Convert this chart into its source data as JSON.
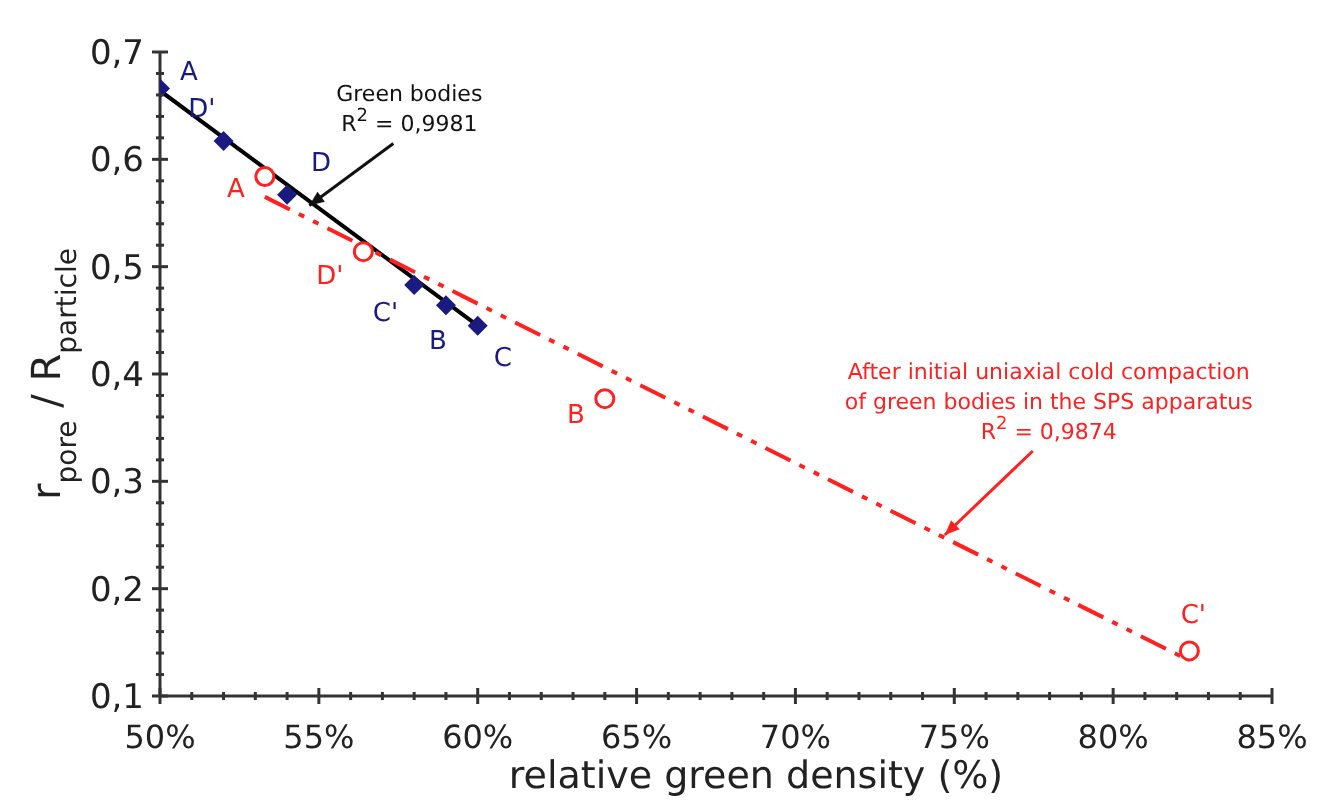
{
  "chart_data": {
    "type": "scatter",
    "xlabel": "relative green density (%)",
    "ylabel": "r$_{pore}$ / R$_{particle}$",
    "xlim": [
      50,
      85
    ],
    "ylim": [
      0.1,
      0.7
    ],
    "xticks": [
      {
        "value": 50,
        "label": "50%"
      },
      {
        "value": 51,
        "label": null
      },
      {
        "value": 52,
        "label": null
      },
      {
        "value": 53,
        "label": null
      },
      {
        "value": 54,
        "label": null
      },
      {
        "value": 55,
        "label": "55%"
      },
      {
        "value": 56,
        "label": null
      },
      {
        "value": 57,
        "label": null
      },
      {
        "value": 58,
        "label": null
      },
      {
        "value": 59,
        "label": null
      },
      {
        "value": 60,
        "label": "60%"
      },
      {
        "value": 61,
        "label": null
      },
      {
        "value": 62,
        "label": null
      },
      {
        "value": 63,
        "label": null
      },
      {
        "value": 64,
        "label": null
      },
      {
        "value": 65,
        "label": "65%"
      },
      {
        "value": 66,
        "label": null
      },
      {
        "value": 67,
        "label": null
      },
      {
        "value": 68,
        "label": null
      },
      {
        "value": 69,
        "label": null
      },
      {
        "value": 70,
        "label": "70%"
      },
      {
        "value": 71,
        "label": null
      },
      {
        "value": 72,
        "label": null
      },
      {
        "value": 73,
        "label": null
      },
      {
        "value": 74,
        "label": null
      },
      {
        "value": 75,
        "label": "75%"
      },
      {
        "value": 76,
        "label": null
      },
      {
        "value": 77,
        "label": null
      },
      {
        "value": 78,
        "label": null
      },
      {
        "value": 79,
        "label": null
      },
      {
        "value": 80,
        "label": "80%"
      },
      {
        "value": 81,
        "label": null
      },
      {
        "value": 82,
        "label": null
      },
      {
        "value": 83,
        "label": null
      },
      {
        "value": 84,
        "label": null
      },
      {
        "value": 85,
        "label": "85%"
      }
    ],
    "yticks": [
      {
        "value": 0.1,
        "label": "0,1"
      },
      {
        "value": 0.12,
        "label": null
      },
      {
        "value": 0.14,
        "label": null
      },
      {
        "value": 0.16,
        "label": null
      },
      {
        "value": 0.18,
        "label": null
      },
      {
        "value": 0.2,
        "label": "0,2"
      },
      {
        "value": 0.22,
        "label": null
      },
      {
        "value": 0.24,
        "label": null
      },
      {
        "value": 0.26,
        "label": null
      },
      {
        "value": 0.28,
        "label": null
      },
      {
        "value": 0.3,
        "label": "0,3"
      },
      {
        "value": 0.32,
        "label": null
      },
      {
        "value": 0.34,
        "label": null
      },
      {
        "value": 0.36,
        "label": null
      },
      {
        "value": 0.38,
        "label": null
      },
      {
        "value": 0.4,
        "label": "0,4"
      },
      {
        "value": 0.42,
        "label": null
      },
      {
        "value": 0.44,
        "label": null
      },
      {
        "value": 0.46,
        "label": null
      },
      {
        "value": 0.48,
        "label": null
      },
      {
        "value": 0.5,
        "label": "0,5"
      },
      {
        "value": 0.52,
        "label": null
      },
      {
        "value": 0.54,
        "label": null
      },
      {
        "value": 0.56,
        "label": null
      },
      {
        "value": 0.58,
        "label": null
      },
      {
        "value": 0.6,
        "label": "0,6"
      },
      {
        "value": 0.62,
        "label": null
      },
      {
        "value": 0.64,
        "label": null
      },
      {
        "value": 0.66,
        "label": null
      },
      {
        "value": 0.68,
        "label": null
      },
      {
        "value": 0.7,
        "label": "0,7"
      }
    ],
    "series": [
      {
        "color": "#1a1a80",
        "marker": "diamond",
        "x": [
          50,
          52,
          54,
          58,
          59,
          60
        ],
        "values": [
          0.666,
          0.617,
          0.567,
          0.483,
          0.464,
          0.445
        ],
        "value_labels": [
          "A",
          "D'",
          "D",
          "C'",
          "B",
          "C"
        ]
      },
      {
        "type": "line",
        "color": "#000000",
        "marker": "none",
        "line_style": "solid",
        "x": [
          50,
          60
        ],
        "values": [
          0.664,
          0.445
        ]
      },
      {
        "color": "#ff2020",
        "marker": "circle",
        "x": [
          53.3,
          56.4,
          64.0,
          82.4
        ],
        "values": [
          0.584,
          0.514,
          0.377,
          0.142
        ],
        "value_labels": [
          "A",
          "D'",
          "B",
          "C'"
        ]
      },
      {
        "type": "line",
        "color": "#ff2020",
        "marker": "none",
        "line_style": "dashed",
        "x": [
          53.3,
          82.4
        ],
        "values": [
          0.565,
          0.133
        ]
      }
    ],
    "annotations": [
      {
        "text": "Green bodies\nR$^{2}$ = 0,9981",
        "x": 54.7,
        "y": 0.557
      },
      {
        "text": "After initial uniaxial  cold compaction\nof green bodies in the SPS apparatus\nR$^{2}$ = 0,9874",
        "x": 74.7,
        "y": 0.25
      }
    ]
  }
}
